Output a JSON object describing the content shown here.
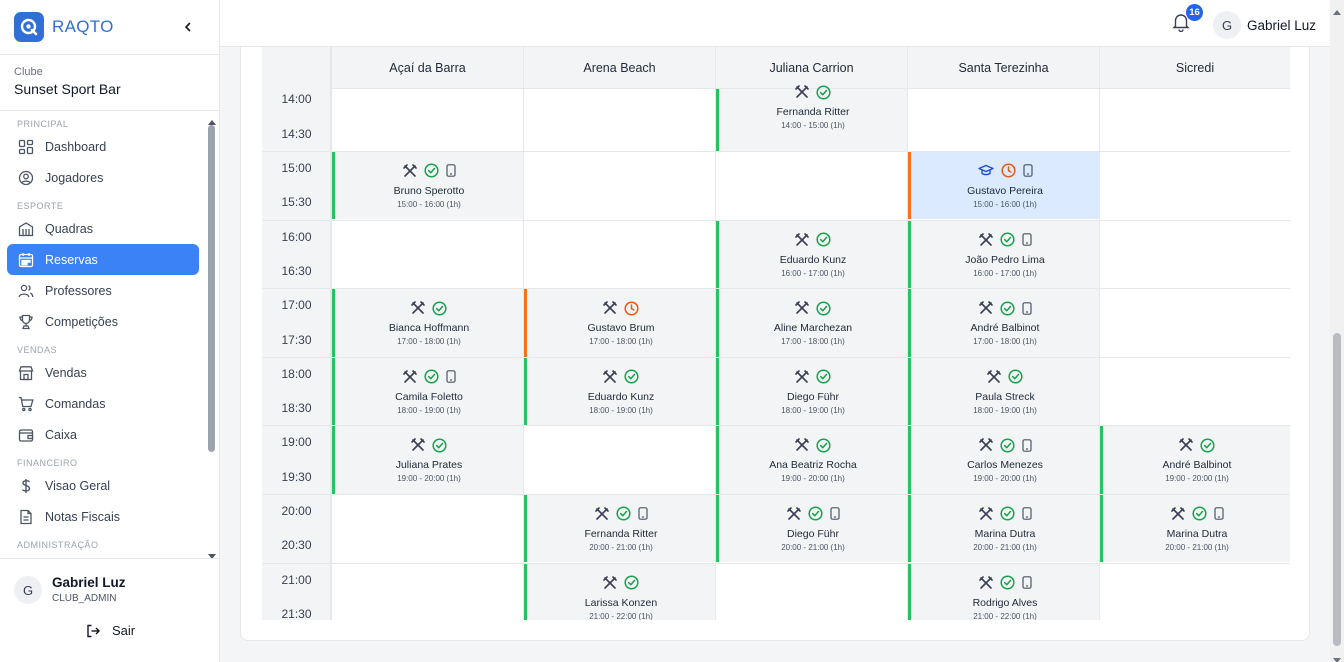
{
  "brand": {
    "name": "RAQTO"
  },
  "club": {
    "label": "Clube",
    "name": "Sunset Sport Bar"
  },
  "nav": {
    "sections": {
      "principal": "PRINCIPAL",
      "esporte": "ESPORTE",
      "vendas": "VENDAS",
      "financeiro": "FINANCEIRO",
      "administracao": "ADMINISTRAÇÃO"
    },
    "items": {
      "dashboard": "Dashboard",
      "jogadores": "Jogadores",
      "quadras": "Quadras",
      "reservas": "Reservas",
      "professores": "Professores",
      "competicoes": "Competições",
      "vendas": "Vendas",
      "comandas": "Comandas",
      "caixa": "Caixa",
      "visao_geral": "Visao Geral",
      "notas_fiscais": "Notas Fiscais"
    },
    "active": "reservas"
  },
  "user": {
    "initial": "G",
    "name": "Gabriel Luz",
    "role": "CLUB_ADMIN",
    "logout": "Sair"
  },
  "topbar": {
    "notifications": "16",
    "initial": "G",
    "user_name": "Gabriel Luz"
  },
  "calendar": {
    "courts": [
      "Açaí da Barra",
      "Arena Beach",
      "Juliana Carrion",
      "Santa Terezinha",
      "Sicredi"
    ],
    "times": [
      "14:00",
      "14:30",
      "15:00",
      "15:30",
      "16:00",
      "16:30",
      "17:00",
      "17:30",
      "18:00",
      "18:30",
      "19:00",
      "19:30",
      "20:00",
      "20:30",
      "21:00",
      "21:30"
    ],
    "status_colors": {
      "confirmed": "#22c55e",
      "pending": "#f97316"
    },
    "bookings": [
      {
        "court": 2,
        "start": "14:00",
        "name": "Fernanda Ritter",
        "time": "14:00 - 15:00 (1h)",
        "icons": [
          "rackets-icon",
          "check-circle-icon"
        ],
        "status": "confirmed"
      },
      {
        "court": 0,
        "start": "15:00",
        "name": "Bruno Sperotto",
        "time": "15:00 - 16:00 (1h)",
        "icons": [
          "rackets-icon",
          "check-circle-icon",
          "phone-icon"
        ],
        "status": "confirmed"
      },
      {
        "court": 3,
        "start": "15:00",
        "name": "Gustavo Pereira",
        "time": "15:00 - 16:00 (1h)",
        "icons": [
          "graduation-cap-icon",
          "clock-icon",
          "phone-icon"
        ],
        "status": "pending",
        "highlight": true
      },
      {
        "court": 2,
        "start": "16:00",
        "name": "Eduardo Kunz",
        "time": "16:00 - 17:00 (1h)",
        "icons": [
          "rackets-icon",
          "check-circle-icon"
        ],
        "status": "confirmed"
      },
      {
        "court": 3,
        "start": "16:00",
        "name": "João Pedro Lima",
        "time": "16:00 - 17:00 (1h)",
        "icons": [
          "rackets-icon",
          "check-circle-icon",
          "phone-icon"
        ],
        "status": "confirmed"
      },
      {
        "court": 0,
        "start": "17:00",
        "name": "Bianca Hoffmann",
        "time": "17:00 - 18:00 (1h)",
        "icons": [
          "rackets-icon",
          "check-circle-icon"
        ],
        "status": "confirmed"
      },
      {
        "court": 1,
        "start": "17:00",
        "name": "Gustavo Brum",
        "time": "17:00 - 18:00 (1h)",
        "icons": [
          "rackets-icon",
          "clock-icon"
        ],
        "status": "pending"
      },
      {
        "court": 2,
        "start": "17:00",
        "name": "Aline Marchezan",
        "time": "17:00 - 18:00 (1h)",
        "icons": [
          "rackets-icon",
          "check-circle-icon"
        ],
        "status": "confirmed"
      },
      {
        "court": 3,
        "start": "17:00",
        "name": "André Balbinot",
        "time": "17:00 - 18:00 (1h)",
        "icons": [
          "rackets-icon",
          "check-circle-icon",
          "phone-icon"
        ],
        "status": "confirmed"
      },
      {
        "court": 0,
        "start": "18:00",
        "name": "Camila Foletto",
        "time": "18:00 - 19:00 (1h)",
        "icons": [
          "rackets-icon",
          "check-circle-icon",
          "phone-icon"
        ],
        "status": "confirmed"
      },
      {
        "court": 1,
        "start": "18:00",
        "name": "Eduardo Kunz",
        "time": "18:00 - 19:00 (1h)",
        "icons": [
          "rackets-icon",
          "check-circle-icon"
        ],
        "status": "confirmed"
      },
      {
        "court": 2,
        "start": "18:00",
        "name": "Diego Führ",
        "time": "18:00 - 19:00 (1h)",
        "icons": [
          "rackets-icon",
          "check-circle-icon"
        ],
        "status": "confirmed"
      },
      {
        "court": 3,
        "start": "18:00",
        "name": "Paula Streck",
        "time": "18:00 - 19:00 (1h)",
        "icons": [
          "rackets-icon",
          "check-circle-icon"
        ],
        "status": "confirmed"
      },
      {
        "court": 0,
        "start": "19:00",
        "name": "Juliana Prates",
        "time": "19:00 - 20:00 (1h)",
        "icons": [
          "rackets-icon",
          "check-circle-icon"
        ],
        "status": "confirmed"
      },
      {
        "court": 2,
        "start": "19:00",
        "name": "Ana Beatriz Rocha",
        "time": "19:00 - 20:00 (1h)",
        "icons": [
          "rackets-icon",
          "check-circle-icon"
        ],
        "status": "confirmed"
      },
      {
        "court": 3,
        "start": "19:00",
        "name": "Carlos Menezes",
        "time": "19:00 - 20:00 (1h)",
        "icons": [
          "rackets-icon",
          "check-circle-icon",
          "phone-icon"
        ],
        "status": "confirmed"
      },
      {
        "court": 4,
        "start": "19:00",
        "name": "André Balbinot",
        "time": "19:00 - 20:00 (1h)",
        "icons": [
          "rackets-icon",
          "check-circle-icon"
        ],
        "status": "confirmed"
      },
      {
        "court": 1,
        "start": "20:00",
        "name": "Fernanda Ritter",
        "time": "20:00 - 21:00 (1h)",
        "icons": [
          "rackets-icon",
          "check-circle-icon",
          "phone-icon"
        ],
        "status": "confirmed"
      },
      {
        "court": 2,
        "start": "20:00",
        "name": "Diego Führ",
        "time": "20:00 - 21:00 (1h)",
        "icons": [
          "rackets-icon",
          "check-circle-icon",
          "phone-icon"
        ],
        "status": "confirmed"
      },
      {
        "court": 3,
        "start": "20:00",
        "name": "Marina Dutra",
        "time": "20:00 - 21:00 (1h)",
        "icons": [
          "rackets-icon",
          "check-circle-icon",
          "phone-icon"
        ],
        "status": "confirmed"
      },
      {
        "court": 4,
        "start": "20:00",
        "name": "Marina Dutra",
        "time": "20:00 - 21:00 (1h)",
        "icons": [
          "rackets-icon",
          "check-circle-icon",
          "phone-icon"
        ],
        "status": "confirmed"
      },
      {
        "court": 1,
        "start": "21:00",
        "name": "Larissa Konzen",
        "time": "21:00 - 22:00 (1h)",
        "icons": [
          "rackets-icon",
          "check-circle-icon"
        ],
        "status": "confirmed"
      },
      {
        "court": 3,
        "start": "21:00",
        "name": "Rodrigo Alves",
        "time": "21:00 - 22:00 (1h)",
        "icons": [
          "rackets-icon",
          "check-circle-icon",
          "phone-icon"
        ],
        "status": "confirmed"
      }
    ]
  }
}
